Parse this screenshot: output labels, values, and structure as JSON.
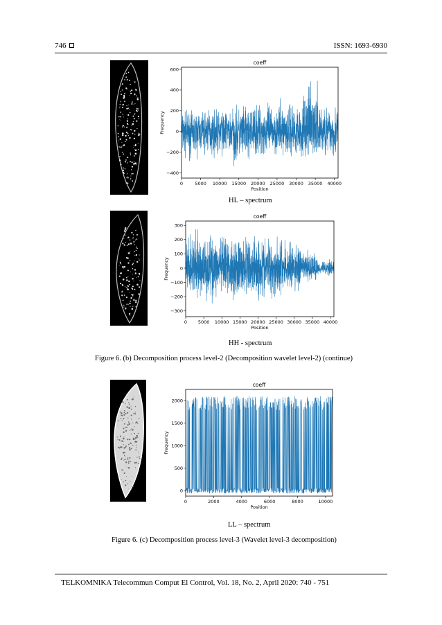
{
  "header": {
    "page_number": "746",
    "issn": "ISSN: 1693-6930"
  },
  "footer": {
    "text": "TELKOMNIKA Telecommun Comput El Control, Vol. 18, No. 2, April 2020:  740 - 751"
  },
  "captions": {
    "hl": "HL – spectrum",
    "hh": "HH - spectrum",
    "fig6b": "Figure 6. (b) Decomposition process level-2 (Decomposition wavelet level-2) (continue)",
    "ll": "LL – spectrum",
    "fig6c": "Figure 6. (c) Decomposition process level-3 (Wavelet level-3 decomposition)"
  },
  "chart_data": [
    {
      "type": "line",
      "title": "coeff",
      "xlabel": "Position",
      "ylabel": "Frequency",
      "xlim": [
        0,
        40960
      ],
      "ylim": [
        -450,
        620
      ],
      "xticks": [
        0,
        5000,
        10000,
        15000,
        20000,
        25000,
        30000,
        35000,
        40000
      ],
      "yticks": [
        -400,
        -200,
        0,
        200,
        400,
        600
      ],
      "color": "#1f77b4",
      "series": [
        {
          "x_range": [
            0,
            40960
          ],
          "envelope_min": [
            -330,
            -300,
            -310,
            -420,
            -320,
            -300,
            -310,
            -330,
            -330
          ],
          "envelope_max": [
            250,
            270,
            280,
            300,
            330,
            350,
            380,
            560,
            330
          ]
        }
      ]
    },
    {
      "type": "line",
      "title": "coeff",
      "xlabel": "Position",
      "ylabel": "Frequency",
      "xlim": [
        0,
        40960
      ],
      "ylim": [
        -340,
        330
      ],
      "xticks": [
        0,
        5000,
        10000,
        15000,
        20000,
        25000,
        30000,
        35000,
        40000
      ],
      "yticks": [
        -300,
        -200,
        -100,
        0,
        100,
        200,
        300
      ],
      "color": "#1f77b4",
      "series": [
        {
          "x_range": [
            0,
            40960
          ],
          "envelope_min": [
            -290,
            -270,
            -260,
            -280,
            -270,
            -260,
            -230,
            -120,
            -60
          ],
          "envelope_max": [
            300,
            310,
            280,
            290,
            300,
            280,
            250,
            150,
            80
          ]
        }
      ]
    },
    {
      "type": "line",
      "title": "coeff",
      "xlabel": "Position",
      "ylabel": "Frequency",
      "xlim": [
        0,
        10500
      ],
      "ylim": [
        -120,
        2250
      ],
      "xticks": [
        0,
        2000,
        4000,
        6000,
        8000,
        10000
      ],
      "yticks": [
        0,
        500,
        1000,
        1500,
        2000
      ],
      "color": "#1f77b4",
      "series": [
        {
          "x_range": [
            0,
            10500
          ],
          "baseline": 0,
          "peak": 2100
        }
      ]
    }
  ]
}
